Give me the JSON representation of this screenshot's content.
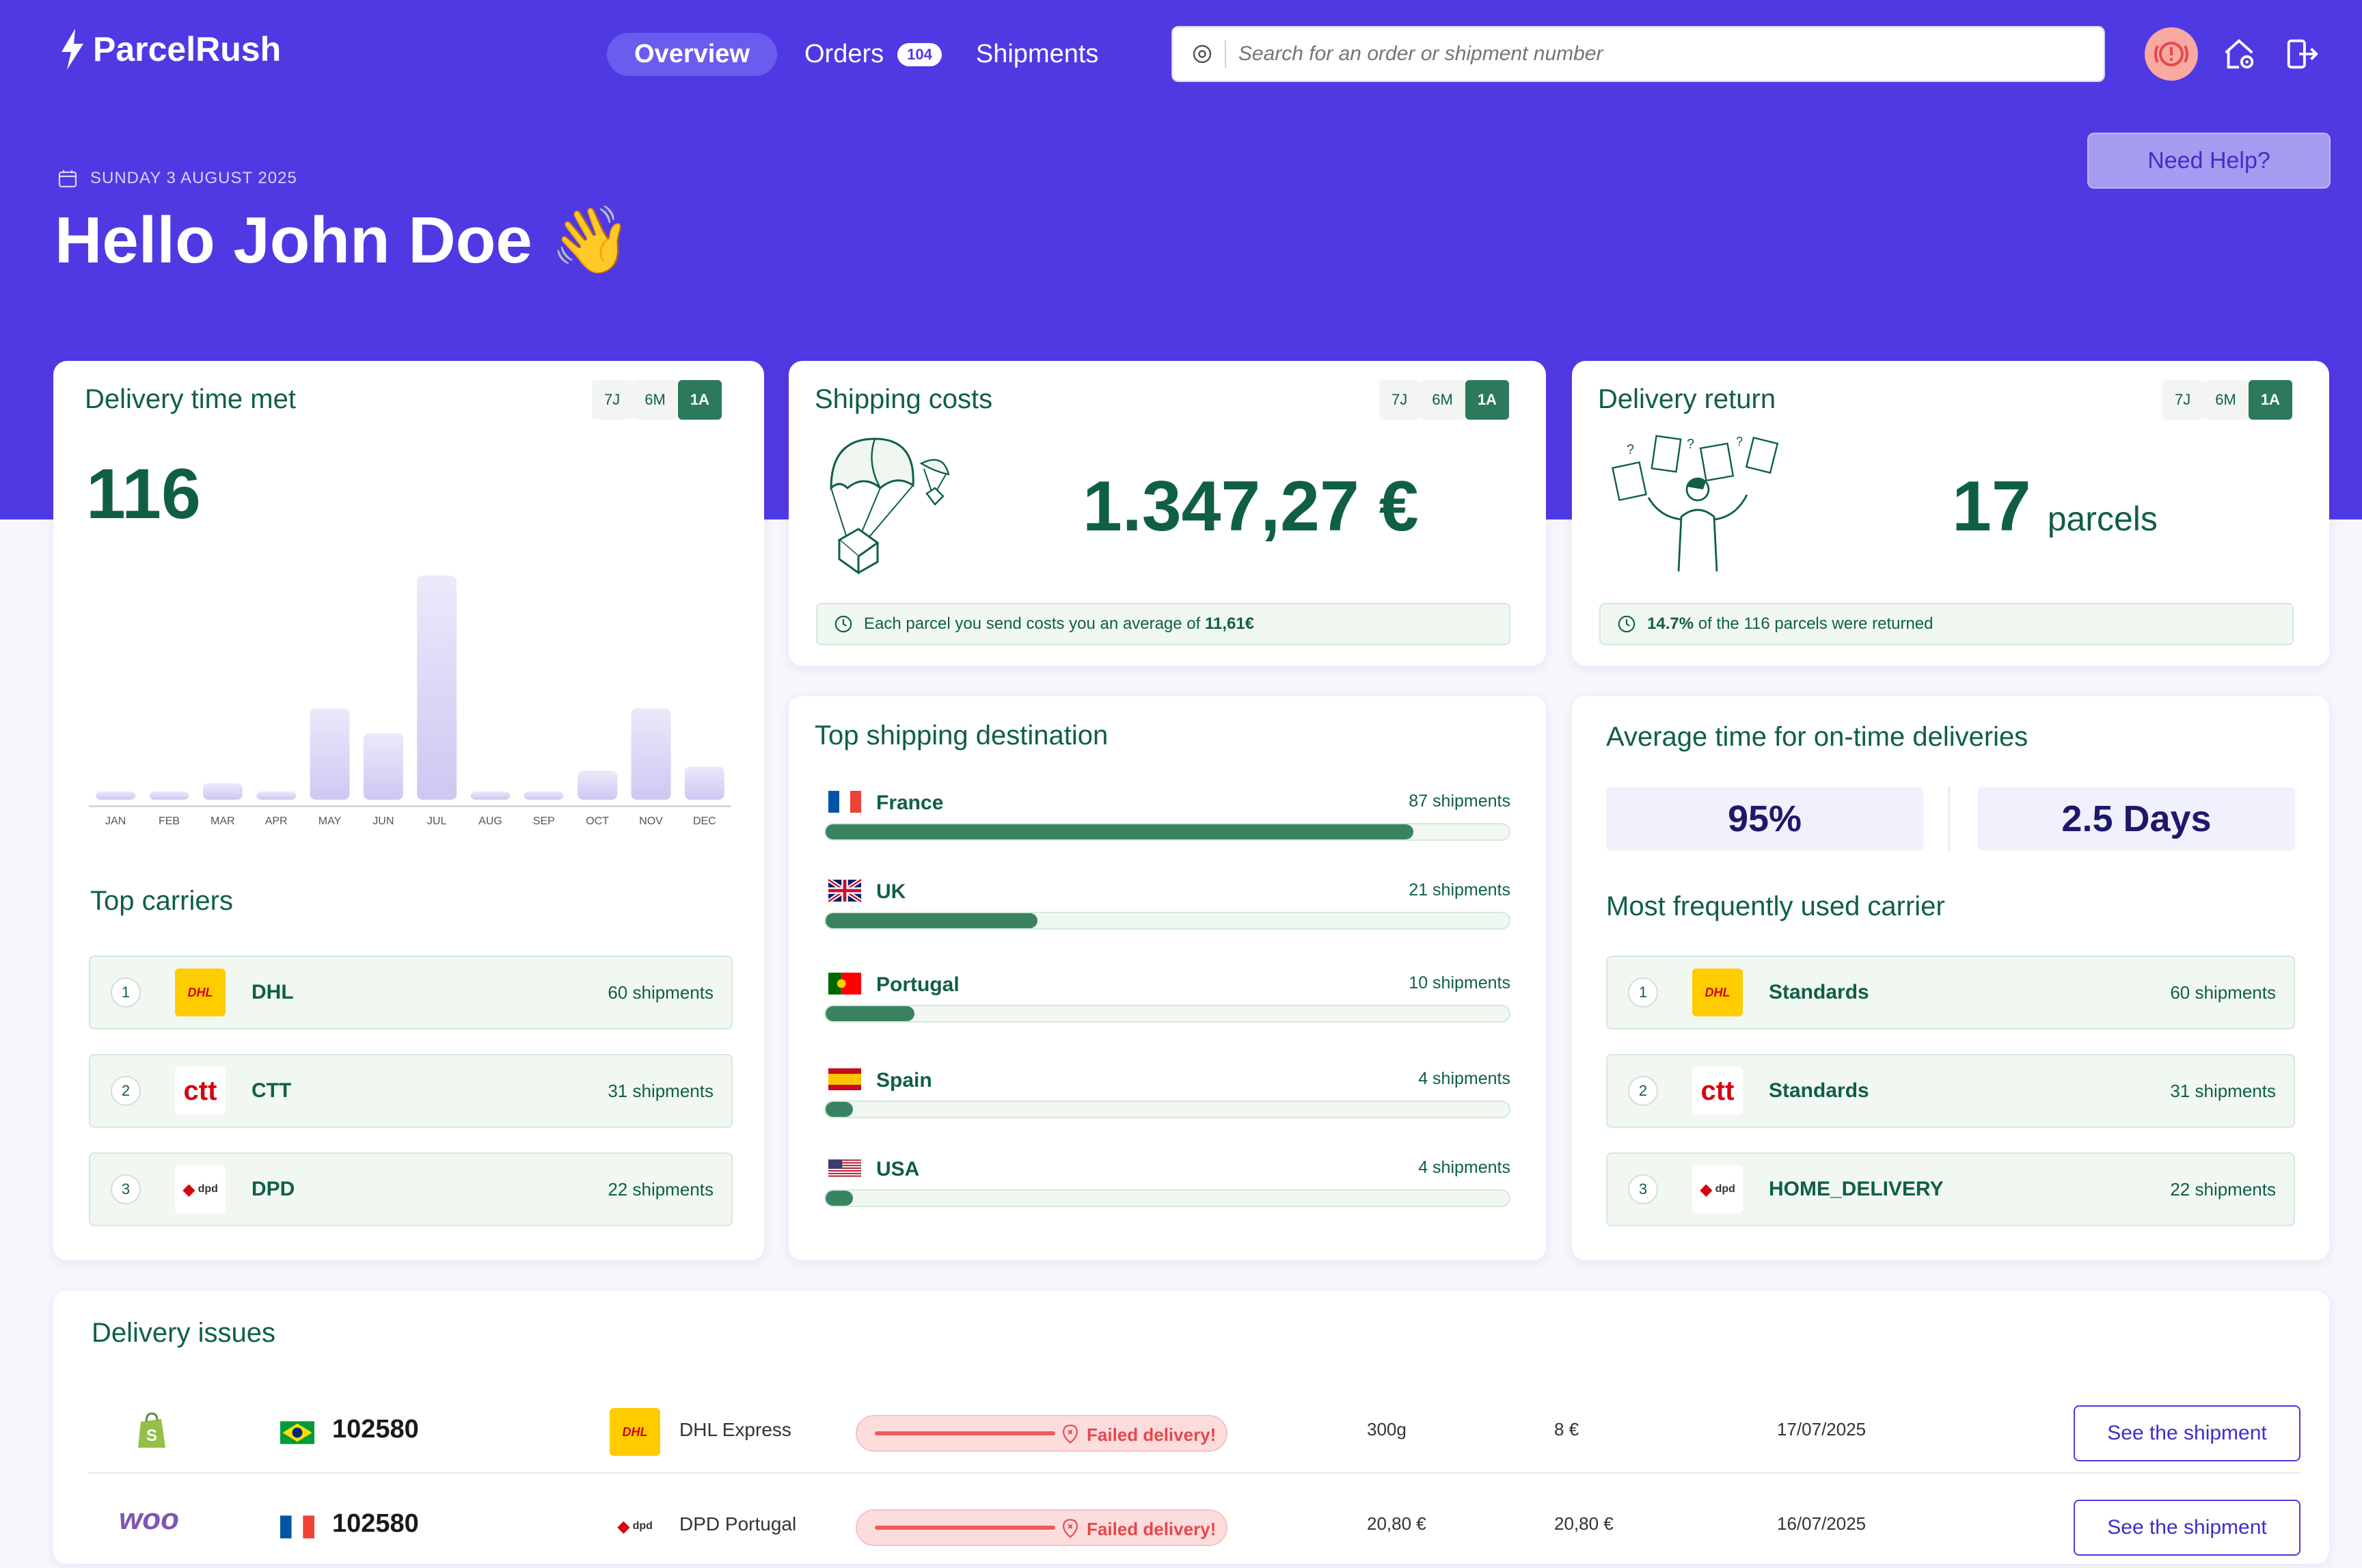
{
  "app": {
    "logo_text": "ParcelRush"
  },
  "nav": {
    "items": [
      {
        "label": "Overview",
        "active": true
      },
      {
        "label": "Orders",
        "badge": "104"
      },
      {
        "label": "Shipments"
      }
    ]
  },
  "search": {
    "placeholder": "Search for an order or shipment number"
  },
  "header": {
    "date": "SUNDAY 3 AUGUST 2025",
    "greeting": "Hello John Doe 👋",
    "help_label": "Need Help?"
  },
  "periods": [
    "7J",
    "6M",
    "1A"
  ],
  "delivery_time": {
    "title": "Delivery time met",
    "value": "116",
    "chart_data": {
      "type": "bar",
      "categories": [
        "JAN",
        "FEB",
        "MAR",
        "APR",
        "MAY",
        "JUN",
        "JUL",
        "AUG",
        "SEP",
        "OCT",
        "NOV",
        "DEC"
      ],
      "values": [
        2,
        2,
        4,
        2,
        22,
        16,
        54,
        2,
        2,
        7,
        22,
        8
      ]
    }
  },
  "top_carriers": {
    "title": "Top carriers",
    "items": [
      {
        "rank": "1",
        "logo": "DHL",
        "name": "DHL",
        "count": "60 shipments"
      },
      {
        "rank": "2",
        "logo": "ctt",
        "name": "CTT",
        "count": "31 shipments"
      },
      {
        "rank": "3",
        "logo": "dpd",
        "name": "DPD",
        "count": "22 shipments"
      }
    ]
  },
  "shipping_costs": {
    "title": "Shipping costs",
    "value": "1.347,27 €",
    "note_prefix": "Each parcel you send costs you an average of ",
    "note_bold": "11,61€"
  },
  "delivery_return": {
    "title": "Delivery return",
    "value": "17",
    "unit": "parcels",
    "note_bold": "14.7%",
    "note_suffix": " of the 116 parcels were returned"
  },
  "destinations": {
    "title": "Top shipping destination",
    "items": [
      {
        "flag": "france",
        "name": "France",
        "count": "87 shipments",
        "share": 0.86
      },
      {
        "flag": "uk",
        "name": "UK",
        "count": "21 shipments",
        "share": 0.31
      },
      {
        "flag": "portugal",
        "name": "Portugal",
        "count": "10 shipments",
        "share": 0.13
      },
      {
        "flag": "spain",
        "name": "Spain",
        "count": "4 shipments",
        "share": 0.04
      },
      {
        "flag": "usa",
        "name": "USA",
        "count": "4 shipments",
        "share": 0.04
      }
    ]
  },
  "on_time": {
    "title": "Average time for on-time deliveries",
    "percent": "95%",
    "days": "2.5 Days"
  },
  "frequent_carrier": {
    "title": "Most frequently used carrier",
    "items": [
      {
        "rank": "1",
        "logo": "DHL",
        "name": "Standards",
        "count": "60 shipments"
      },
      {
        "rank": "2",
        "logo": "ctt",
        "name": "Standards",
        "count": "31 shipments"
      },
      {
        "rank": "3",
        "logo": "dpd",
        "name": "HOME_DELIVERY",
        "count": "22 shipments"
      }
    ]
  },
  "issues": {
    "title": "Delivery issues",
    "rows": [
      {
        "shop": "shopify-icon",
        "flag": "brazil",
        "order": "102580",
        "carrier_logo": "DHL",
        "carrier": "DHL Express",
        "status": "Failed delivery!",
        "weight": "300g",
        "price": "8 €",
        "date": "17/07/2025",
        "action": "See the shipment"
      },
      {
        "shop": "woo",
        "flag": "france",
        "order": "102580",
        "carrier_logo": "dpd",
        "carrier": "DPD Portugal",
        "status": "Failed delivery!",
        "weight": "20,80 €",
        "price": "20,80 €",
        "date": "16/07/2025",
        "action": "See the shipment"
      }
    ]
  },
  "colors": {
    "brand": "#4f39e3",
    "accent_green": "#0f5f46",
    "bar": "#d9d3f5",
    "danger": "#e5484d"
  }
}
